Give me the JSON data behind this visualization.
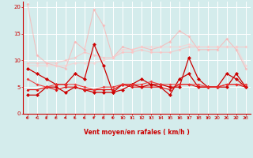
{
  "x": [
    0,
    1,
    2,
    3,
    4,
    5,
    6,
    7,
    8,
    9,
    10,
    11,
    12,
    13,
    14,
    15,
    16,
    17,
    18,
    19,
    20,
    21,
    22,
    23
  ],
  "series": [
    {
      "color": "#ffaaaa",
      "alpha": 0.65,
      "linewidth": 0.8,
      "markersize": 2.0,
      "y": [
        20.5,
        11.0,
        9.5,
        9.0,
        8.5,
        13.5,
        12.0,
        19.5,
        16.5,
        10.5,
        12.5,
        12.0,
        12.5,
        12.0,
        12.5,
        13.5,
        15.5,
        14.5,
        12.0,
        12.0,
        12.0,
        14.0,
        12.0,
        8.5
      ]
    },
    {
      "color": "#ffbbbb",
      "alpha": 0.65,
      "linewidth": 0.8,
      "markersize": 2.0,
      "y": [
        9.5,
        9.5,
        9.5,
        9.5,
        10.0,
        10.5,
        11.5,
        11.0,
        10.5,
        10.5,
        11.5,
        11.5,
        12.0,
        11.5,
        11.5,
        11.5,
        12.0,
        12.5,
        12.5,
        12.5,
        12.5,
        12.5,
        12.5,
        12.5
      ]
    },
    {
      "color": "#ffcccc",
      "alpha": 0.65,
      "linewidth": 0.8,
      "markersize": 2.0,
      "y": [
        9.0,
        9.0,
        9.0,
        9.0,
        9.0,
        9.5,
        9.5,
        9.5,
        10.0,
        10.5,
        12.0,
        12.0,
        12.5,
        12.5,
        12.5,
        12.5,
        12.5,
        13.0,
        12.5,
        12.5,
        12.5,
        12.5,
        12.5,
        9.0
      ]
    },
    {
      "color": "#cc0000",
      "alpha": 1.0,
      "linewidth": 0.9,
      "markersize": 2.5,
      "y": [
        8.5,
        7.5,
        6.5,
        5.5,
        5.5,
        7.5,
        6.5,
        13.0,
        9.0,
        4.0,
        4.5,
        5.5,
        6.5,
        5.5,
        5.5,
        5.0,
        5.0,
        10.5,
        6.5,
        5.0,
        5.0,
        5.0,
        7.5,
        5.0
      ]
    },
    {
      "color": "#cc0000",
      "alpha": 1.0,
      "linewidth": 0.9,
      "markersize": 2.5,
      "y": [
        3.5,
        3.5,
        5.0,
        5.0,
        4.0,
        5.0,
        4.5,
        4.0,
        4.0,
        4.0,
        5.5,
        5.5,
        5.0,
        5.5,
        5.0,
        3.5,
        6.5,
        7.5,
        5.0,
        5.0,
        5.0,
        7.5,
        6.5,
        5.0
      ]
    },
    {
      "color": "#dd1111",
      "alpha": 1.0,
      "linewidth": 0.8,
      "markersize": 2.0,
      "y": [
        4.5,
        4.5,
        5.0,
        4.5,
        5.0,
        5.0,
        4.5,
        4.5,
        4.5,
        4.5,
        5.5,
        5.0,
        5.0,
        5.0,
        5.0,
        4.5,
        5.5,
        5.5,
        5.0,
        5.0,
        5.0,
        5.5,
        5.5,
        5.0
      ]
    },
    {
      "color": "#ee3333",
      "alpha": 0.9,
      "linewidth": 0.8,
      "markersize": 2.0,
      "y": [
        6.5,
        5.5,
        5.0,
        5.5,
        5.5,
        5.5,
        5.0,
        4.5,
        5.0,
        5.0,
        5.5,
        5.5,
        5.5,
        6.0,
        5.5,
        5.5,
        5.5,
        5.5,
        5.5,
        5.0,
        5.0,
        5.5,
        5.5,
        5.5
      ]
    }
  ],
  "xlabel": "Vent moyen/en rafales ( km/h )",
  "xlim": [
    -0.5,
    23.5
  ],
  "ylim": [
    0,
    21
  ],
  "yticks": [
    0,
    5,
    10,
    15,
    20
  ],
  "xticks": [
    0,
    1,
    2,
    3,
    4,
    5,
    6,
    7,
    8,
    9,
    10,
    11,
    12,
    13,
    14,
    15,
    16,
    17,
    18,
    19,
    20,
    21,
    22,
    23
  ],
  "bg_color": "#d4ecec",
  "grid_color": "#ffffff",
  "tick_color": "#cc0000",
  "label_color": "#cc0000"
}
